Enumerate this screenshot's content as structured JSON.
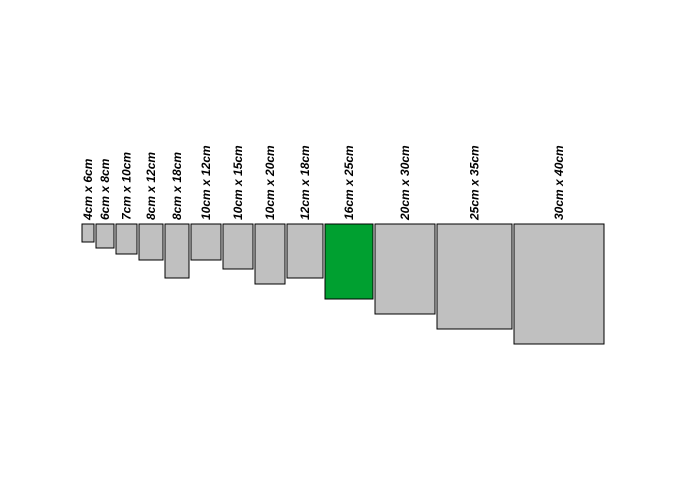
{
  "colors": {
    "default_fill": "#c0c0c0",
    "highlight_fill": "#00a030",
    "stroke": "#000000",
    "background": "#ffffff"
  },
  "sizes": [
    {
      "label": "4cm x 6cm",
      "width_cm": 4,
      "height_cm": 6,
      "highlighted": false
    },
    {
      "label": "6cm x 8cm",
      "width_cm": 6,
      "height_cm": 8,
      "highlighted": false
    },
    {
      "label": "7cm x 10cm",
      "width_cm": 7,
      "height_cm": 10,
      "highlighted": false
    },
    {
      "label": "8cm x 12cm",
      "width_cm": 8,
      "height_cm": 12,
      "highlighted": false
    },
    {
      "label": "8cm x 18cm",
      "width_cm": 8,
      "height_cm": 18,
      "highlighted": false
    },
    {
      "label": "10cm x 12cm",
      "width_cm": 10,
      "height_cm": 12,
      "highlighted": false
    },
    {
      "label": "10cm x 15cm",
      "width_cm": 10,
      "height_cm": 15,
      "highlighted": false
    },
    {
      "label": "10cm x 20cm",
      "width_cm": 10,
      "height_cm": 20,
      "highlighted": false
    },
    {
      "label": "12cm x 18cm",
      "width_cm": 12,
      "height_cm": 18,
      "highlighted": false
    },
    {
      "label": "16cm x 25cm",
      "width_cm": 16,
      "height_cm": 25,
      "highlighted": true
    },
    {
      "label": "20cm x 30cm",
      "width_cm": 20,
      "height_cm": 30,
      "highlighted": false
    },
    {
      "label": "25cm x 35cm",
      "width_cm": 25,
      "height_cm": 35,
      "highlighted": false
    },
    {
      "label": "30cm x 40cm",
      "width_cm": 30,
      "height_cm": 40,
      "highlighted": false
    }
  ]
}
